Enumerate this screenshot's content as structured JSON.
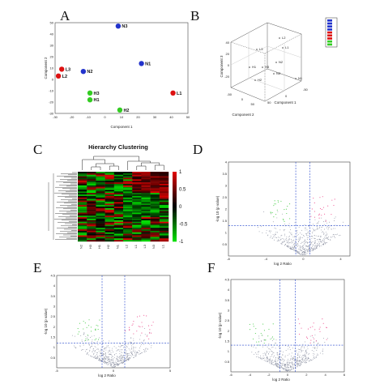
{
  "panels": {
    "A": "A",
    "B": "B",
    "C": "C",
    "D": "D",
    "E": "E",
    "F": "F"
  },
  "colors": {
    "N": "#2233cc",
    "L": "#dd1111",
    "H": "#33cc22",
    "heat_high": "#dd0000",
    "heat_mid": "#000000",
    "heat_low": "#22dd22"
  },
  "chart_data": [
    {
      "type": "scatter",
      "panel": "A",
      "xlabel": "Component 1",
      "ylabel": "Component 2",
      "xlim": [
        -30,
        50
      ],
      "ylim": [
        -30,
        50
      ],
      "xticks": [
        "-30",
        "-20",
        "-10",
        "0",
        "10",
        "20",
        "30",
        "40",
        "50"
      ],
      "yticks": [
        "50",
        "40",
        "30",
        "20",
        "10",
        "0",
        "-10",
        "-20",
        "-30"
      ],
      "points": [
        {
          "label": "N3",
          "group": "N",
          "x": 8,
          "y": 47
        },
        {
          "label": "N1",
          "group": "N",
          "x": 22,
          "y": 14
        },
        {
          "label": "N2",
          "group": "N",
          "x": -13,
          "y": 7
        },
        {
          "label": "L3",
          "group": "L",
          "x": -26,
          "y": 9
        },
        {
          "label": "L2",
          "group": "L",
          "x": -28,
          "y": 3
        },
        {
          "label": "L1",
          "group": "L",
          "x": 41,
          "y": -12
        },
        {
          "label": "H3",
          "group": "H",
          "x": -9,
          "y": -12
        },
        {
          "label": "H1",
          "group": "H",
          "x": -9,
          "y": -18
        },
        {
          "label": "H2",
          "group": "H",
          "x": 9,
          "y": -27
        }
      ]
    },
    {
      "type": "scatter",
      "panel": "B",
      "xlabel": "Component 1",
      "ylabel": "Component 2",
      "zlabel": "Component 3",
      "xticks": [
        "50",
        "0",
        "-50"
      ],
      "yticks": [
        "-50",
        "0",
        "50"
      ],
      "zticks": [
        "40",
        "20",
        "0",
        "-20"
      ],
      "point_labels": [
        "L2",
        "L3",
        "L1",
        "N2",
        "H1",
        "H3",
        "H2",
        "N3",
        "N1"
      ]
    },
    {
      "type": "heatmap",
      "panel": "C",
      "title": "Hierarchy Clustering",
      "columns": [
        "N2",
        "H3",
        "H1",
        "H2",
        "N1",
        "L2",
        "L1",
        "L3",
        "N3",
        "L1"
      ],
      "colorbar_ticks": [
        "1",
        "0.5",
        "0",
        "-0.5",
        "-1"
      ]
    },
    {
      "type": "scatter",
      "panel": "D",
      "xlabel": "log 2 Ratio",
      "ylabel": "-log 10 (p value)",
      "xlim": [
        -8,
        5
      ],
      "ylim": [
        0,
        4
      ],
      "xticks": [
        "-8",
        "-4",
        "0",
        "4"
      ],
      "yticks": [
        "4",
        "3.5",
        "3",
        "2.5",
        "2",
        "1.5",
        "1",
        "0.5"
      ]
    },
    {
      "type": "scatter",
      "panel": "E",
      "xlabel": "log 2 Ratio",
      "ylabel": "-log 10 (p value)",
      "xlim": [
        -5,
        5
      ],
      "ylim": [
        0,
        4.5
      ],
      "xticks": [
        "-5",
        "0",
        "5"
      ],
      "yticks": [
        "4.5",
        "4",
        "3.5",
        "3",
        "2.5",
        "2",
        "1.5",
        "1",
        "0.5"
      ]
    },
    {
      "type": "scatter",
      "panel": "F",
      "xlabel": "log 2 Ratio",
      "ylabel": "-log 10 (p value)",
      "xlim": [
        -6,
        6
      ],
      "ylim": [
        0,
        4.5
      ],
      "xticks": [
        "-6",
        "-4",
        "-2",
        "0",
        "2",
        "4",
        "6"
      ],
      "yticks": [
        "4.5",
        "4",
        "3.5",
        "3",
        "2.5",
        "2",
        "1.5",
        "1",
        "0.5"
      ]
    }
  ]
}
